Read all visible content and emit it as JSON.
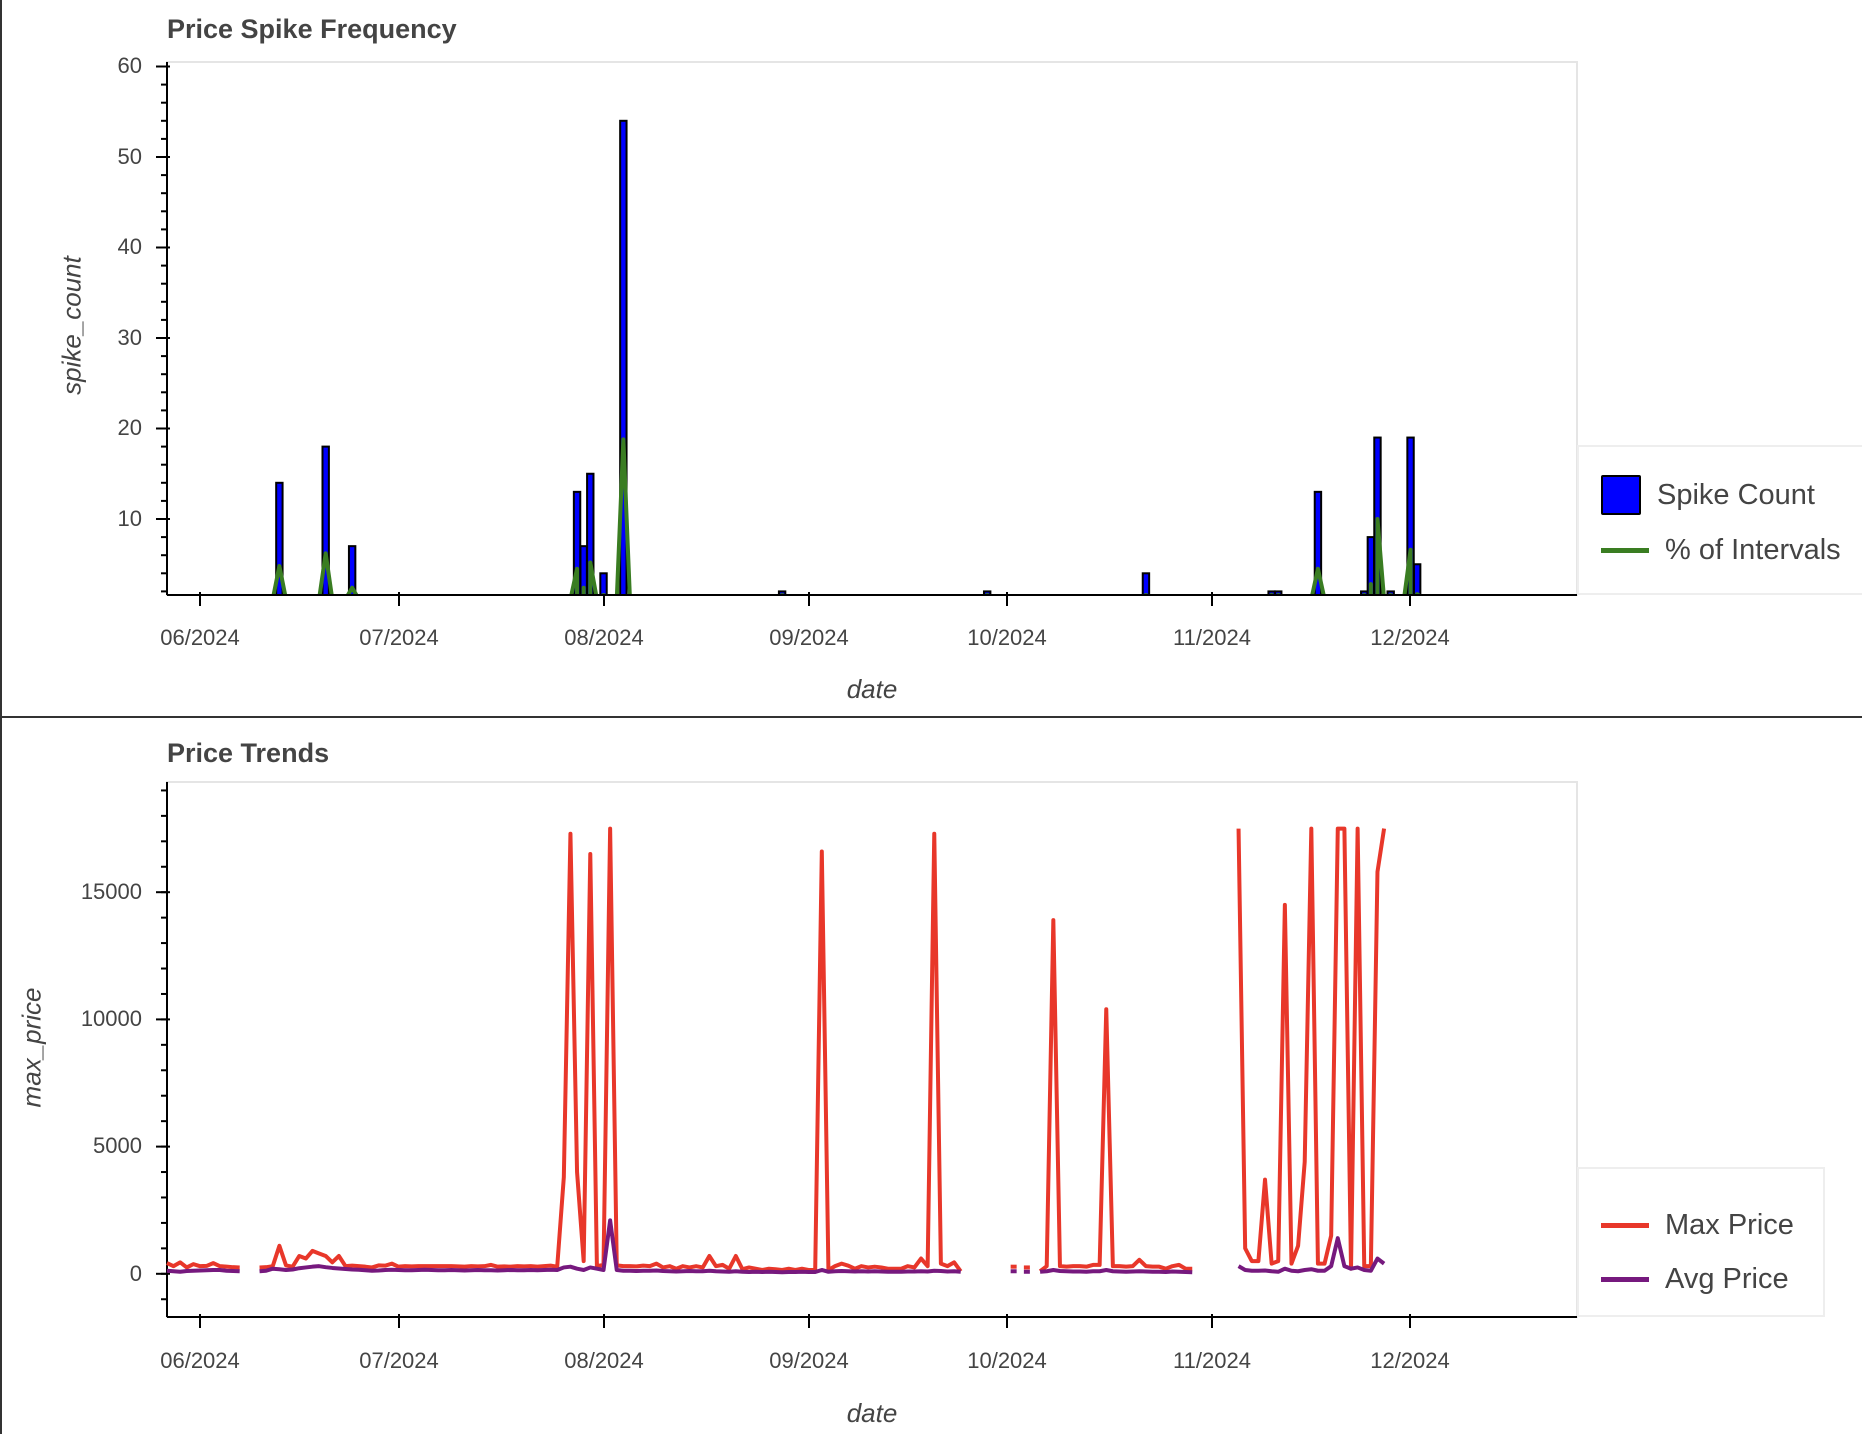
{
  "chart_data": [
    {
      "type": "bar",
      "title": "Price Spike Frequency",
      "xlabel": "date",
      "ylabel": "spike_count",
      "ylim": [
        1.6,
        60
      ],
      "xlim": [
        "2024-05-27",
        "2024-12-26"
      ],
      "grid": false,
      "legend_position": "right",
      "x_ticks": [
        "06/2024",
        "07/2024",
        "08/2024",
        "09/2024",
        "10/2024",
        "11/2024",
        "12/2024"
      ],
      "y_ticks": [
        10,
        20,
        30,
        40,
        50,
        60
      ],
      "series": [
        {
          "name": "Spike Count",
          "kind": "bar",
          "color": "#0000ff",
          "points": [
            {
              "date": "2024-06-13",
              "value": 14
            },
            {
              "date": "2024-06-20",
              "value": 18
            },
            {
              "date": "2024-06-24",
              "value": 7
            },
            {
              "date": "2024-07-28",
              "value": 13
            },
            {
              "date": "2024-07-29",
              "value": 7
            },
            {
              "date": "2024-07-30",
              "value": 15
            },
            {
              "date": "2024-08-01",
              "value": 4
            },
            {
              "date": "2024-08-04",
              "value": 54
            },
            {
              "date": "2024-08-28",
              "value": 2
            },
            {
              "date": "2024-09-28",
              "value": 2
            },
            {
              "date": "2024-10-22",
              "value": 4
            },
            {
              "date": "2024-11-10",
              "value": 2
            },
            {
              "date": "2024-11-11",
              "value": 2
            },
            {
              "date": "2024-11-17",
              "value": 13
            },
            {
              "date": "2024-11-24",
              "value": 2
            },
            {
              "date": "2024-11-25",
              "value": 8
            },
            {
              "date": "2024-11-26",
              "value": 19
            },
            {
              "date": "2024-11-28",
              "value": 2
            },
            {
              "date": "2024-12-01",
              "value": 19
            },
            {
              "date": "2024-12-02",
              "value": 5
            }
          ]
        },
        {
          "name": "% of Intervals",
          "kind": "line",
          "color": "#3a7d22",
          "points": [
            {
              "date": "2024-06-13",
              "value": 4.8
            },
            {
              "date": "2024-06-20",
              "value": 6.2
            },
            {
              "date": "2024-06-24",
              "value": 2.4
            },
            {
              "date": "2024-07-28",
              "value": 4.5
            },
            {
              "date": "2024-07-29",
              "value": 2.4
            },
            {
              "date": "2024-07-30",
              "value": 5.2
            },
            {
              "date": "2024-08-01",
              "value": 1.4
            },
            {
              "date": "2024-08-04",
              "value": 18.8
            },
            {
              "date": "2024-08-28",
              "value": 0.7
            },
            {
              "date": "2024-09-28",
              "value": 0.7
            },
            {
              "date": "2024-10-22",
              "value": 1.4
            },
            {
              "date": "2024-11-10",
              "value": 0.7
            },
            {
              "date": "2024-11-11",
              "value": 0.7
            },
            {
              "date": "2024-11-17",
              "value": 4.5
            },
            {
              "date": "2024-11-24",
              "value": 0.7
            },
            {
              "date": "2024-11-25",
              "value": 2.8
            },
            {
              "date": "2024-11-26",
              "value": 10.0
            },
            {
              "date": "2024-11-28",
              "value": 0.7
            },
            {
              "date": "2024-12-01",
              "value": 6.6
            },
            {
              "date": "2024-12-02",
              "value": 1.7
            }
          ]
        }
      ]
    },
    {
      "type": "line",
      "title": "Price Trends",
      "xlabel": "date",
      "ylabel": "max_price",
      "ylim": [
        -1750,
        19150
      ],
      "xlim": [
        "2024-05-27",
        "2024-12-26"
      ],
      "grid": false,
      "legend_position": "right",
      "x_ticks": [
        "06/2024",
        "07/2024",
        "08/2024",
        "09/2024",
        "10/2024",
        "11/2024",
        "12/2024"
      ],
      "y_ticks": [
        0,
        5000,
        10000,
        15000
      ],
      "start_date": "2024-05-27",
      "series": [
        {
          "name": "Max Price",
          "color": "#e8372a",
          "values": [
            420,
            300,
            450,
            250,
            380,
            300,
            310,
            420,
            300,
            280,
            260,
            250,
            null,
            null,
            250,
            260,
            300,
            1100,
            330,
            280,
            700,
            600,
            900,
            800,
            700,
            450,
            700,
            300,
            320,
            300,
            280,
            250,
            330,
            320,
            400,
            280,
            300,
            290,
            300,
            300,
            300,
            300,
            300,
            300,
            290,
            280,
            300,
            290,
            300,
            350,
            280,
            290,
            280,
            300,
            290,
            300,
            280,
            300,
            320,
            280,
            3800,
            17300,
            4000,
            500,
            16500,
            300,
            350,
            17500,
            330,
            300,
            300,
            290,
            320,
            300,
            400,
            250,
            300,
            200,
            300,
            250,
            300,
            250,
            700,
            300,
            350,
            200,
            700,
            180,
            250,
            200,
            150,
            200,
            180,
            150,
            200,
            150,
            200,
            150,
            150,
            16600,
            150,
            300,
            400,
            320,
            200,
            300,
            250,
            280,
            250,
            200,
            200,
            200,
            300,
            250,
            600,
            300,
            17300,
            400,
            300,
            450,
            100,
            null,
            null,
            null,
            null,
            null,
            null,
            null,
            280,
            null,
            250,
            null,
            100,
            300,
            13900,
            300,
            280,
            300,
            300,
            280,
            350,
            350,
            10400,
            300,
            300,
            280,
            300,
            550,
            300,
            280,
            280,
            200,
            300,
            350,
            200,
            200,
            null,
            null,
            null,
            null,
            null,
            null,
            17500,
            1000,
            500,
            500,
            3700,
            400,
            500,
            14500,
            400,
            1100,
            4400,
            17500,
            400,
            400,
            1500,
            17500,
            17500,
            200,
            17500,
            300,
            300,
            15800,
            17500
          ],
          "note": "Gaps (null) where no data; spikes capped near 17500"
        },
        {
          "name": "Avg Price",
          "color": "#76197e",
          "values": [
            120,
            100,
            80,
            110,
            120,
            130,
            140,
            150,
            150,
            120,
            110,
            100,
            null,
            null,
            100,
            120,
            200,
            180,
            150,
            170,
            220,
            250,
            280,
            300,
            260,
            230,
            210,
            190,
            170,
            160,
            140,
            120,
            130,
            150,
            160,
            150,
            140,
            140,
            150,
            160,
            150,
            140,
            140,
            150,
            140,
            130,
            140,
            150,
            140,
            140,
            130,
            140,
            150,
            140,
            140,
            150,
            140,
            150,
            160,
            150,
            250,
            280,
            200,
            150,
            250,
            200,
            150,
            2100,
            150,
            120,
            120,
            110,
            120,
            120,
            130,
            110,
            100,
            90,
            100,
            110,
            100,
            100,
            120,
            100,
            90,
            80,
            100,
            80,
            70,
            80,
            70,
            80,
            70,
            60,
            70,
            70,
            80,
            70,
            70,
            150,
            80,
            100,
            110,
            100,
            90,
            100,
            90,
            100,
            90,
            80,
            80,
            80,
            90,
            90,
            100,
            90,
            120,
            110,
            90,
            100,
            80,
            null,
            null,
            null,
            null,
            null,
            null,
            null,
            100,
            null,
            80,
            null,
            80,
            100,
            150,
            110,
            100,
            90,
            90,
            80,
            100,
            100,
            150,
            100,
            90,
            80,
            90,
            100,
            90,
            80,
            80,
            70,
            90,
            80,
            70,
            60,
            null,
            null,
            null,
            null,
            null,
            null,
            300,
            150,
            120,
            120,
            130,
            100,
            80,
            200,
            120,
            100,
            150,
            180,
            120,
            120,
            300,
            1400,
            300,
            200,
            250,
            150,
            120,
            600,
            400
          ]
        }
      ]
    }
  ],
  "panels": {
    "top": {
      "title": "Price Spike Frequency",
      "ylabel": "spike_count",
      "xlabel": "date",
      "y_tick_labels": [
        "10",
        "20",
        "30",
        "40",
        "50",
        "60"
      ],
      "x_tick_labels": [
        "06/2024",
        "07/2024",
        "08/2024",
        "09/2024",
        "10/2024",
        "11/2024",
        "12/2024"
      ],
      "legend": [
        {
          "label": "Spike Count",
          "color": "#0000ff",
          "kind": "box"
        },
        {
          "label": "% of Intervals",
          "color": "#3a7d22",
          "kind": "line"
        }
      ]
    },
    "bottom": {
      "title": "Price Trends",
      "ylabel": "max_price",
      "xlabel": "date",
      "y_tick_labels": [
        "0",
        "5000",
        "10000",
        "15000"
      ],
      "x_tick_labels": [
        "06/2024",
        "07/2024",
        "08/2024",
        "09/2024",
        "10/2024",
        "11/2024",
        "12/2024"
      ],
      "legend": [
        {
          "label": "Max Price",
          "color": "#e8372a",
          "kind": "line"
        },
        {
          "label": "Avg Price",
          "color": "#76197e",
          "kind": "line"
        }
      ]
    }
  }
}
